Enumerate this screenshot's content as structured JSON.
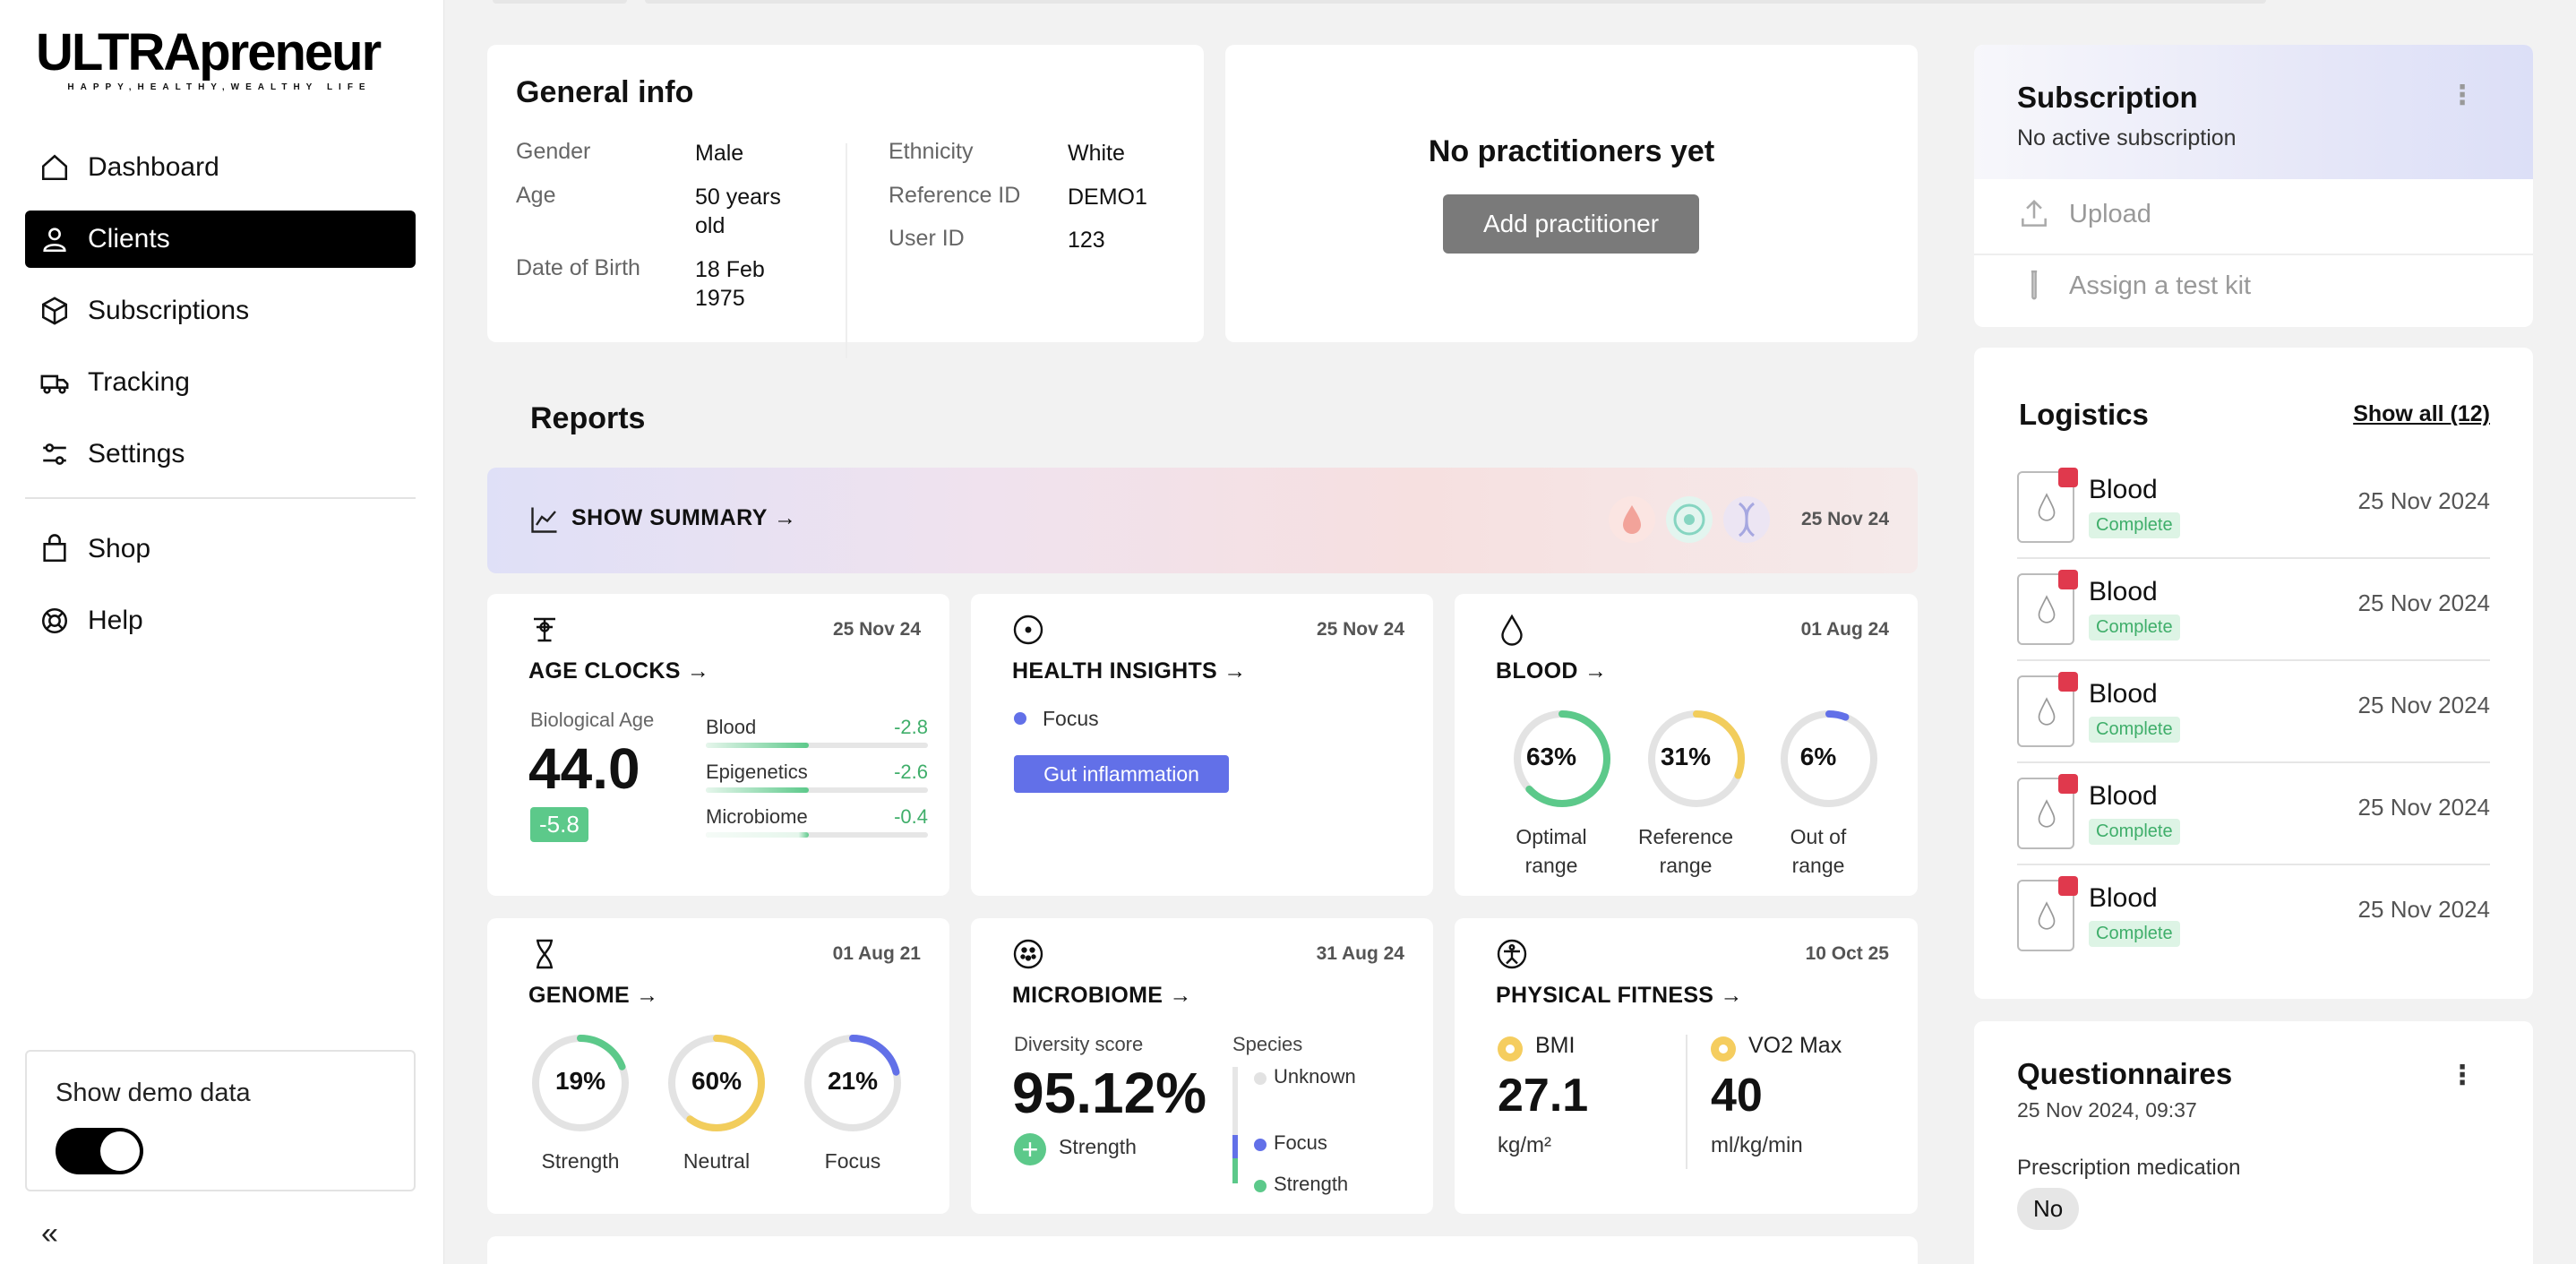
{
  "brand": {
    "logo": "ULTRApreneur",
    "tagline": "HAPPY,HEALTHY,WEALTHY LIFE"
  },
  "sidebar": {
    "items": [
      {
        "label": "Dashboard",
        "icon": "home-icon"
      },
      {
        "label": "Clients",
        "icon": "user-icon",
        "active": true
      },
      {
        "label": "Subscriptions",
        "icon": "box-icon"
      },
      {
        "label": "Tracking",
        "icon": "truck-icon"
      },
      {
        "label": "Settings",
        "icon": "sliders-icon"
      },
      {
        "label": "Shop",
        "icon": "shopping-bag-icon"
      },
      {
        "label": "Help",
        "icon": "lifebuoy-icon"
      }
    ],
    "demo_label": "Show demo data",
    "demo_enabled": true,
    "collapse_icon": "«"
  },
  "general_info": {
    "title": "General info",
    "gender_key": "Gender",
    "gender": "Male",
    "age_key": "Age",
    "age": "50 years old",
    "dob_key": "Date of Birth",
    "dob": "18 Feb 1975",
    "ethnicity_key": "Ethnicity",
    "ethnicity": "White",
    "ref_key": "Reference ID",
    "ref": "DEMO1",
    "user_key": "User ID",
    "user": "123"
  },
  "practitioners": {
    "title": "No practitioners yet",
    "button": "Add practitioner"
  },
  "reports": {
    "title": "Reports",
    "summary_label": "SHOW SUMMARY →",
    "summary_date": "25 Nov 24",
    "age_clocks": {
      "title": "AGE CLOCKS →",
      "date": "25 Nov 24",
      "bio_label": "Biological Age",
      "bio_value": "44.0",
      "delta": "-5.8",
      "rows": [
        {
          "label": "Blood",
          "value": "-2.8"
        },
        {
          "label": "Epigenetics",
          "value": "-2.6"
        },
        {
          "label": "Microbiome",
          "value": "-0.4"
        }
      ]
    },
    "health_insights": {
      "title": "HEALTH INSIGHTS →",
      "date": "25 Nov 24",
      "focus": "Focus",
      "tag": "Gut inflammation"
    },
    "blood": {
      "title": "BLOOD →",
      "date": "01 Aug 24",
      "rings": [
        {
          "pct": "63%",
          "value": 63,
          "label1": "Optimal",
          "label2": "range",
          "color": "#5cc98a"
        },
        {
          "pct": "31%",
          "value": 31,
          "label1": "Reference",
          "label2": "range",
          "color": "#f2cd5c"
        },
        {
          "pct": "6%",
          "value": 6,
          "label1": "Out of",
          "label2": "range",
          "color": "#6270e8"
        }
      ]
    },
    "genome": {
      "title": "GENOME →",
      "date": "01 Aug 21",
      "rings": [
        {
          "pct": "19%",
          "value": 19,
          "label": "Strength",
          "color": "#5cc98a"
        },
        {
          "pct": "60%",
          "value": 60,
          "label": "Neutral",
          "color": "#f2cd5c"
        },
        {
          "pct": "21%",
          "value": 21,
          "label": "Focus",
          "color": "#6270e8"
        }
      ]
    },
    "microbiome": {
      "title": "MICROBIOME →",
      "date": "31 Aug 24",
      "diversity_label": "Diversity score",
      "diversity_value": "95.12%",
      "strength_label": "Strength",
      "species_label": "Species",
      "species": [
        {
          "label": "Unknown",
          "color": "#d8d8d8"
        },
        {
          "label": "Focus",
          "color": "#6270e8"
        },
        {
          "label": "Strength",
          "color": "#5cc98a"
        }
      ]
    },
    "fitness": {
      "title": "PHYSICAL FITNESS →",
      "date": "10 Oct 25",
      "bmi_label": "BMI",
      "bmi_value": "27.1",
      "bmi_unit": "kg/m²",
      "vo2_label": "VO2 Max",
      "vo2_value": "40",
      "vo2_unit": "ml/kg/min"
    }
  },
  "subscription": {
    "title": "Subscription",
    "status": "No active subscription",
    "upload": "Upload",
    "assign": "Assign a test kit"
  },
  "logistics": {
    "title": "Logistics",
    "show_all": "Show all (12)",
    "items": [
      {
        "name": "Blood",
        "status": "Complete",
        "date": "25 Nov 2024"
      },
      {
        "name": "Blood",
        "status": "Complete",
        "date": "25 Nov 2024"
      },
      {
        "name": "Blood",
        "status": "Complete",
        "date": "25 Nov 2024"
      },
      {
        "name": "Blood",
        "status": "Complete",
        "date": "25 Nov 2024"
      },
      {
        "name": "Blood",
        "status": "Complete",
        "date": "25 Nov 2024"
      }
    ]
  },
  "questionnaires": {
    "title": "Questionnaires",
    "date": "25 Nov 2024, 09:37",
    "item": "Prescription medication",
    "answer": "No"
  }
}
